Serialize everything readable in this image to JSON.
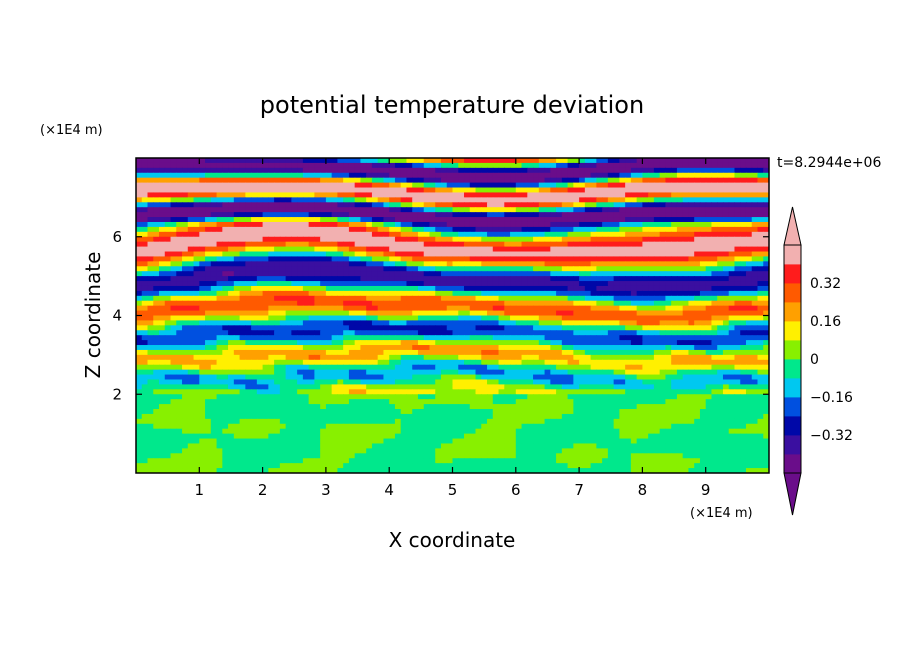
{
  "chart_data": {
    "type": "heatmap",
    "title": "potential temperature deviation",
    "xlabel": "X coordinate",
    "ylabel": "Z coordinate",
    "x_unit": "(×1E4 m)",
    "y_unit": "(×1E4 m)",
    "time_label": "t=8.2944e+06",
    "xlim": [
      0,
      10
    ],
    "ylim": [
      0,
      8
    ],
    "x_ticks": [
      1,
      2,
      3,
      4,
      5,
      6,
      7,
      8,
      9
    ],
    "x_tick_labels": [
      "1",
      "2",
      "3",
      "4",
      "5",
      "6",
      "7",
      "8",
      "9"
    ],
    "y_ticks": [
      2,
      4,
      6
    ],
    "y_tick_labels": [
      "2",
      "4",
      "6"
    ],
    "colorbar": {
      "levels": [
        -0.48,
        -0.4,
        -0.32,
        -0.24,
        -0.16,
        -0.08,
        0,
        0.08,
        0.16,
        0.24,
        0.32,
        0.4,
        0.48
      ],
      "colors": [
        "#6a0d8a",
        "#3a0fa0",
        "#0008a8",
        "#0050e0",
        "#00c8f0",
        "#00e88c",
        "#88f000",
        "#fff000",
        "#ffa000",
        "#ff5a00",
        "#ff1c1c",
        "#f2b0b0"
      ],
      "under_color": "#6a0d8a",
      "over_color": "#f2b0b0",
      "tick_values": [
        0.32,
        0.16,
        0,
        -0.16,
        -0.32
      ],
      "tick_labels": [
        "0.32",
        "0.16",
        "0",
        "−0.16",
        "−0.32"
      ]
    }
  }
}
